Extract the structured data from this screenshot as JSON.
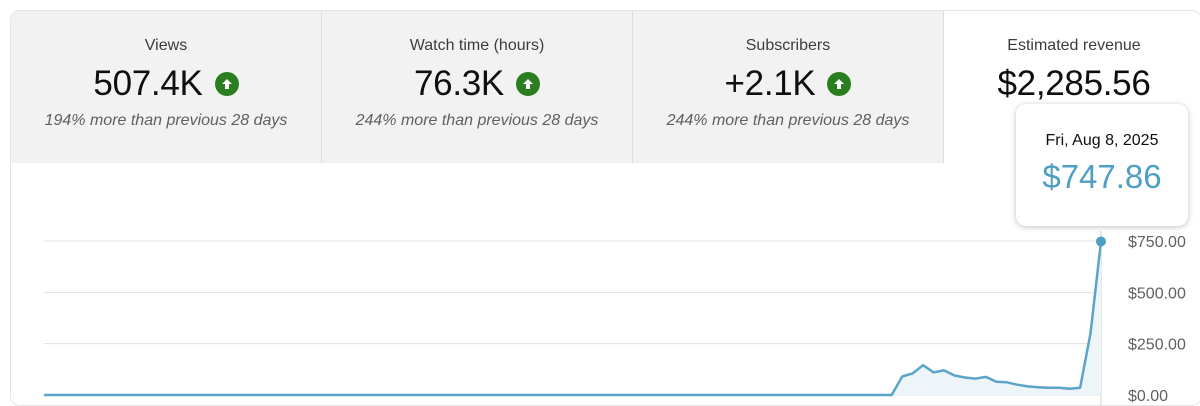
{
  "colors": {
    "line": "#5ba4c9",
    "area": "#eef5f9",
    "marker": "#4f9ec4",
    "grid": "#e0e0e0",
    "up_icon": "#2a7e1f"
  },
  "cards": [
    {
      "title": "Views",
      "value": "507.4K",
      "icon": "arrow-up-icon",
      "compare": "194% more than previous 28 days"
    },
    {
      "title": "Watch time (hours)",
      "value": "76.3K",
      "icon": "arrow-up-icon",
      "compare": "244% more than previous 28 days"
    },
    {
      "title": "Subscribers",
      "value": "+2.1K",
      "icon": "arrow-up-icon",
      "compare": "244% more than previous 28 days"
    },
    {
      "title": "Estimated revenue",
      "value": "$2,285.56"
    }
  ],
  "tooltip": {
    "date": "Fri, Aug 8, 2025",
    "value": "$747.86"
  },
  "chart_data": {
    "type": "area",
    "title": "",
    "xlabel": "",
    "ylabel": "",
    "y_ticks": [
      "$0.00",
      "$250.00",
      "$500.00",
      "$750.00"
    ],
    "y_tick_values": [
      0,
      250,
      500,
      750
    ],
    "ylim": [
      0,
      750
    ],
    "grid": true,
    "series": [
      {
        "values": [
          0,
          0,
          0,
          0,
          0,
          0,
          0,
          0,
          0,
          0,
          0,
          0,
          0,
          0,
          0,
          0,
          0,
          0,
          0,
          0,
          0,
          0,
          0,
          0,
          0,
          0,
          0,
          0,
          0,
          0,
          0,
          0,
          0,
          0,
          0,
          0,
          0,
          0,
          0,
          0,
          0,
          0,
          0,
          0,
          0,
          0,
          0,
          0,
          0,
          0,
          0,
          0,
          0,
          0,
          0,
          0,
          0,
          0,
          0,
          0,
          0,
          0,
          0,
          0,
          0,
          0,
          0,
          0,
          0,
          0,
          0,
          0,
          0,
          0,
          0,
          0,
          0,
          0,
          0,
          0,
          0,
          0,
          90,
          105,
          145,
          110,
          120,
          95,
          85,
          80,
          88,
          65,
          62,
          50,
          42,
          38,
          35,
          35,
          30,
          35,
          300,
          747.86
        ]
      }
    ],
    "highlighted_point": {
      "x": "Fri, Aug 8, 2025",
      "y": 747.86
    }
  }
}
